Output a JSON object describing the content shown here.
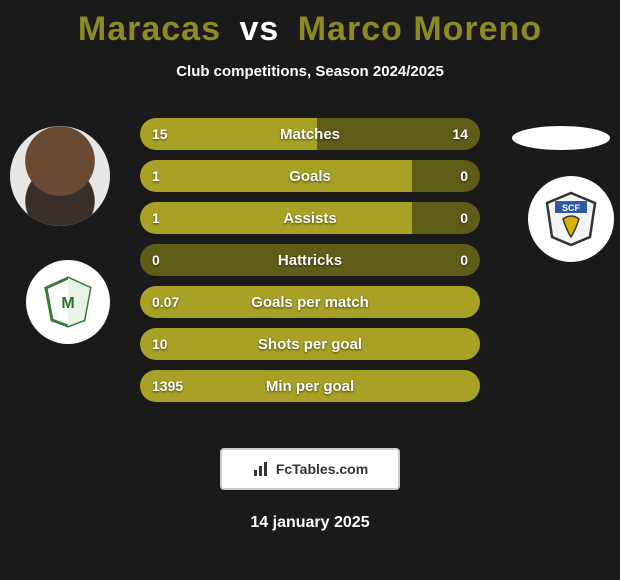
{
  "title": {
    "left": "Maracas",
    "vs": "vs",
    "right": "Marco Moreno"
  },
  "subtitle": "Club competitions, Season 2024/2025",
  "footer_brand": "FcTables.com",
  "date": "14 january 2025",
  "colors": {
    "bar_bg": "#5f5c18",
    "bar_fill": "#a7a126",
    "page_bg": "#1a1a1a",
    "accent_title": "#8c8a22"
  },
  "bars": [
    {
      "label": "Matches",
      "left": "15",
      "right": "14",
      "fill_pct": 52
    },
    {
      "label": "Goals",
      "left": "1",
      "right": "0",
      "fill_pct": 80
    },
    {
      "label": "Assists",
      "left": "1",
      "right": "0",
      "fill_pct": 80
    },
    {
      "label": "Hattricks",
      "left": "0",
      "right": "0",
      "fill_pct": 0
    },
    {
      "label": "Goals per match",
      "left": "0.07",
      "right": "",
      "fill_pct": 100
    },
    {
      "label": "Shots per goal",
      "left": "10",
      "right": "",
      "fill_pct": 100
    },
    {
      "label": "Min per goal",
      "left": "1395",
      "right": "",
      "fill_pct": 100
    }
  ],
  "clubs": {
    "left_name": "Moreirense",
    "right_name": "SCF"
  }
}
